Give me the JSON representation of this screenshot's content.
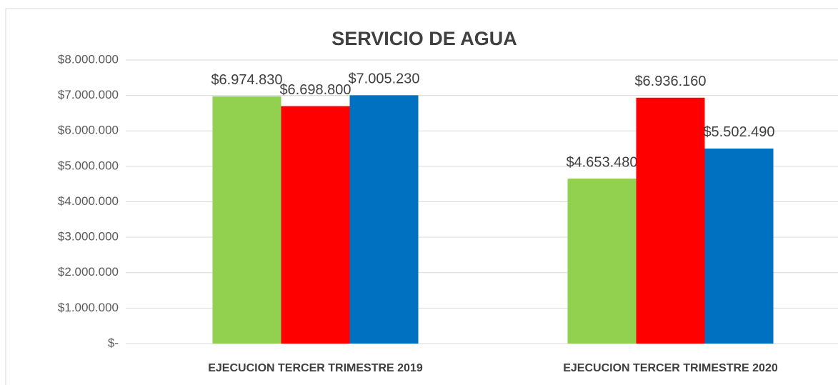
{
  "chart_data": {
    "type": "bar",
    "title": "SERVICIO DE AGUA",
    "categories": [
      "EJECUCION TERCER TRIMESTRE 2019",
      "EJECUCION TERCER TRIMESTRE 2020"
    ],
    "series": [
      {
        "color": "#92d050",
        "values": [
          6974830,
          4653480
        ],
        "value_labels": [
          "$6.974.830",
          "$4.653.480"
        ]
      },
      {
        "color": "#ff0000",
        "values": [
          6698800,
          6936160
        ],
        "value_labels": [
          "$6.698.800",
          "$6.936.160"
        ]
      },
      {
        "color": "#0070c0",
        "values": [
          7005230,
          5502490
        ],
        "value_labels": [
          "$7.005.230",
          "$5.502.490"
        ]
      }
    ],
    "ylim": [
      0,
      8000000
    ],
    "yticks": [
      {
        "value": 0,
        "label": "$-"
      },
      {
        "value": 1000000,
        "label": "$1.000.000"
      },
      {
        "value": 2000000,
        "label": "$2.000.000"
      },
      {
        "value": 3000000,
        "label": "$3.000.000"
      },
      {
        "value": 4000000,
        "label": "$4.000.000"
      },
      {
        "value": 5000000,
        "label": "$5.000.000"
      },
      {
        "value": 6000000,
        "label": "$6.000.000"
      },
      {
        "value": 7000000,
        "label": "$7.000.000"
      },
      {
        "value": 8000000,
        "label": "$8.000.000"
      }
    ],
    "grid": true
  }
}
